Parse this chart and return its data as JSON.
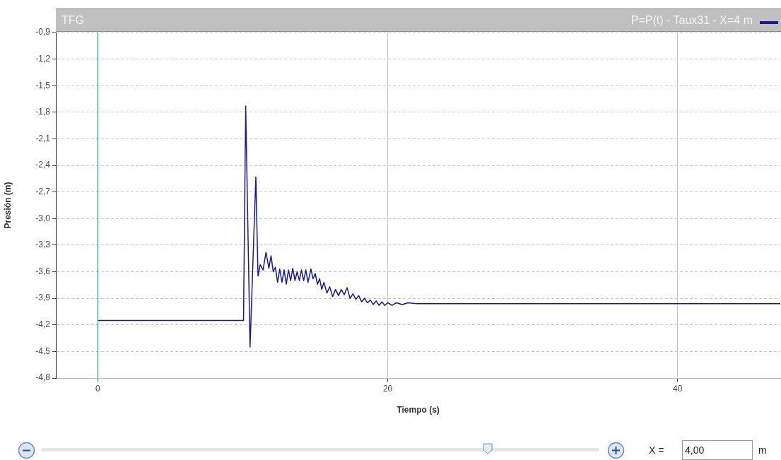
{
  "chart_data": {
    "type": "line",
    "title": "TFG",
    "xlabel": "Tiempo (s)",
    "ylabel": "Presión (m)",
    "legend": "top right",
    "grid": true,
    "marker": "none",
    "line_style": "solid",
    "xlim": [
      -2.9,
      47.1
    ],
    "xticks": [
      0,
      20,
      40
    ],
    "ylim": [
      -4.8,
      -0.9
    ],
    "yticks": [
      {
        "value": -0.9,
        "label": "-0,9"
      },
      {
        "value": -1.2,
        "label": "-1,2"
      },
      {
        "value": -1.5,
        "label": "-1,5"
      },
      {
        "value": -1.8,
        "label": "-1,8"
      },
      {
        "value": -2.1,
        "label": "-2,1"
      },
      {
        "value": -2.4,
        "label": "-2,4"
      },
      {
        "value": -2.7,
        "label": "-2,7"
      },
      {
        "value": -3.0,
        "label": "-3,0"
      },
      {
        "value": -3.3,
        "label": "-3,3"
      },
      {
        "value": -3.6,
        "label": "-3,6"
      },
      {
        "value": -3.9,
        "label": "-3,9"
      },
      {
        "value": -4.2,
        "label": "-4,2"
      },
      {
        "value": -4.5,
        "label": "-4,5"
      },
      {
        "value": -4.8,
        "label": "-4,8"
      }
    ],
    "ref_lines": [
      {
        "axis": "x",
        "value": 0,
        "color": "#2f7f7f"
      }
    ],
    "annotations": [
      "X =",
      "4,00",
      "m"
    ],
    "x": [
      0,
      10.05,
      10.2,
      10.5,
      10.9,
      11.05,
      11.2,
      11.4,
      11.6,
      11.8,
      11.95,
      12.1,
      12.25,
      12.4,
      12.55,
      12.7,
      12.85,
      13.0,
      13.15,
      13.3,
      13.45,
      13.6,
      13.75,
      13.9,
      14.05,
      14.2,
      14.35,
      14.5,
      14.7,
      14.85,
      15.0,
      15.15,
      15.3,
      15.45,
      15.6,
      15.8,
      16.0,
      16.2,
      16.4,
      16.6,
      16.8,
      17.0,
      17.2,
      17.4,
      17.6,
      17.8,
      18.0,
      18.2,
      18.4,
      18.6,
      18.8,
      19.0,
      19.2,
      19.4,
      19.6,
      19.8,
      20.0,
      20.3,
      20.6,
      21.0,
      21.4,
      22,
      25,
      30,
      35,
      47.1
    ],
    "series": [
      {
        "name": "P=P(t) - Taux31 - X=4 m",
        "color": "#1a1a8c",
        "values": [
          -4.15,
          -4.15,
          -1.73,
          -4.45,
          -2.53,
          -3.65,
          -3.52,
          -3.58,
          -3.38,
          -3.56,
          -3.42,
          -3.6,
          -3.55,
          -3.72,
          -3.57,
          -3.72,
          -3.58,
          -3.74,
          -3.58,
          -3.7,
          -3.56,
          -3.7,
          -3.6,
          -3.7,
          -3.58,
          -3.7,
          -3.58,
          -3.72,
          -3.57,
          -3.68,
          -3.62,
          -3.74,
          -3.68,
          -3.8,
          -3.72,
          -3.84,
          -3.77,
          -3.88,
          -3.8,
          -3.87,
          -3.8,
          -3.86,
          -3.78,
          -3.9,
          -3.85,
          -3.91,
          -3.87,
          -3.94,
          -3.9,
          -3.95,
          -3.92,
          -3.97,
          -3.93,
          -3.98,
          -3.94,
          -3.98,
          -3.95,
          -3.98,
          -3.95,
          -3.97,
          -3.95,
          -3.96,
          -3.96,
          -3.96,
          -3.96,
          -3.96
        ]
      }
    ]
  }
}
